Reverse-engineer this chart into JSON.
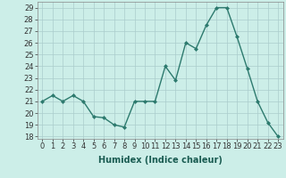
{
  "x": [
    0,
    1,
    2,
    3,
    4,
    5,
    6,
    7,
    8,
    9,
    10,
    11,
    12,
    13,
    14,
    15,
    16,
    17,
    18,
    19,
    20,
    21,
    22,
    23
  ],
  "y": [
    21,
    21.5,
    21,
    21.5,
    21,
    19.7,
    19.6,
    19,
    18.8,
    21,
    21,
    21,
    24,
    22.8,
    26,
    25.5,
    27.5,
    29,
    29,
    26.5,
    23.8,
    21,
    19.2,
    18
  ],
  "line_color": "#2d7a6e",
  "marker": "D",
  "marker_size": 2,
  "bg_color": "#cceee8",
  "grid_color": "#aacccc",
  "xlabel": "Humidex (Indice chaleur)",
  "ylim": [
    17.8,
    29.5
  ],
  "xlim": [
    -0.5,
    23.5
  ],
  "yticks": [
    18,
    19,
    20,
    21,
    22,
    23,
    24,
    25,
    26,
    27,
    28,
    29
  ],
  "xticks": [
    0,
    1,
    2,
    3,
    4,
    5,
    6,
    7,
    8,
    9,
    10,
    11,
    12,
    13,
    14,
    15,
    16,
    17,
    18,
    19,
    20,
    21,
    22,
    23
  ],
  "xlabel_fontsize": 7,
  "tick_fontsize": 6,
  "linewidth": 1.0
}
